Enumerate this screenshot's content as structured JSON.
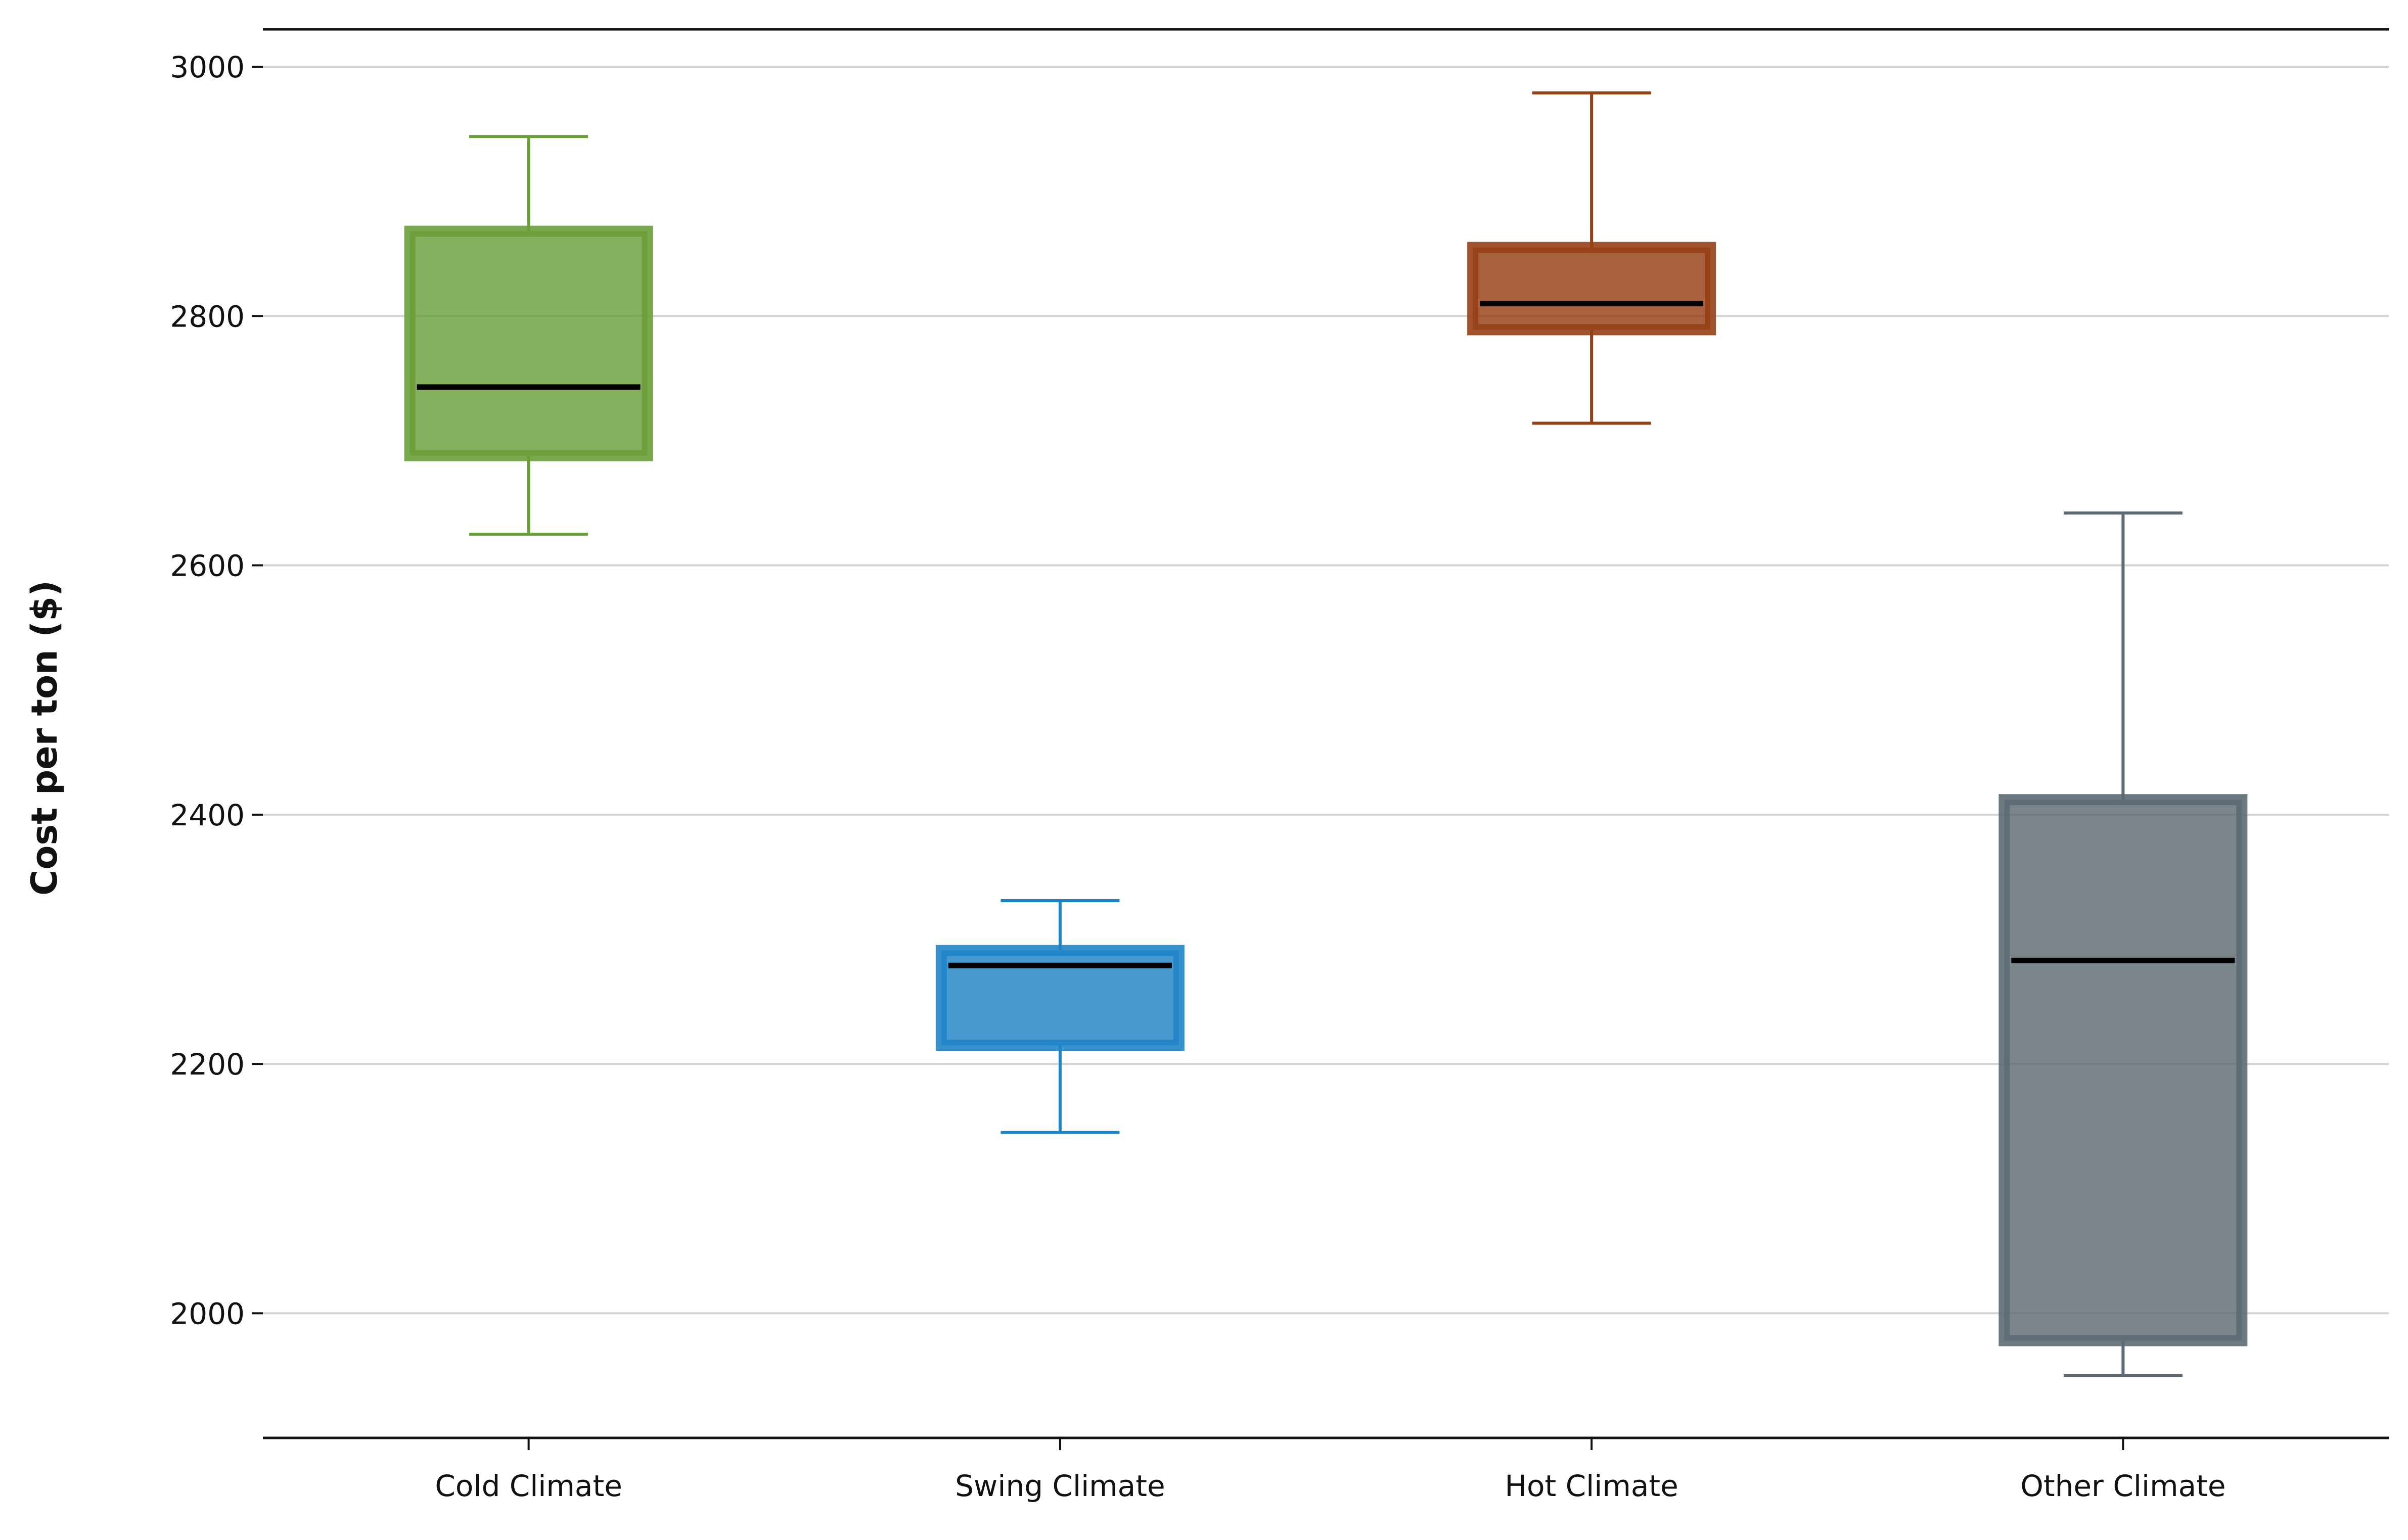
{
  "chart_data": {
    "type": "box",
    "title": "",
    "xlabel": "",
    "ylabel": "Cost per ton ($)",
    "ylim": [
      1900,
      3030
    ],
    "yticks": [
      2000,
      2200,
      2400,
      2600,
      2800,
      3000
    ],
    "grid": "horizontal",
    "categories": [
      "Cold Climate",
      "Swing Climate",
      "Hot Climate",
      "Other Climate"
    ],
    "boxes": [
      {
        "category": "Cold Climate",
        "whisker_low": 2625,
        "q1": 2688,
        "median": 2743,
        "q3": 2868,
        "whisker_high": 2944,
        "color": "#6a9f3a"
      },
      {
        "category": "Swing Climate",
        "whisker_low": 2145,
        "q1": 2215,
        "median": 2279,
        "q3": 2291,
        "whisker_high": 2331,
        "color": "#1f84c6"
      },
      {
        "category": "Hot Climate",
        "whisker_low": 2714,
        "q1": 2789,
        "median": 2810,
        "q3": 2855,
        "whisker_high": 2979,
        "color": "#964016"
      },
      {
        "category": "Other Climate",
        "whisker_low": 1950,
        "q1": 1978,
        "median": 2283,
        "q3": 2412,
        "whisker_high": 2642,
        "color": "#5d6a73"
      }
    ]
  }
}
